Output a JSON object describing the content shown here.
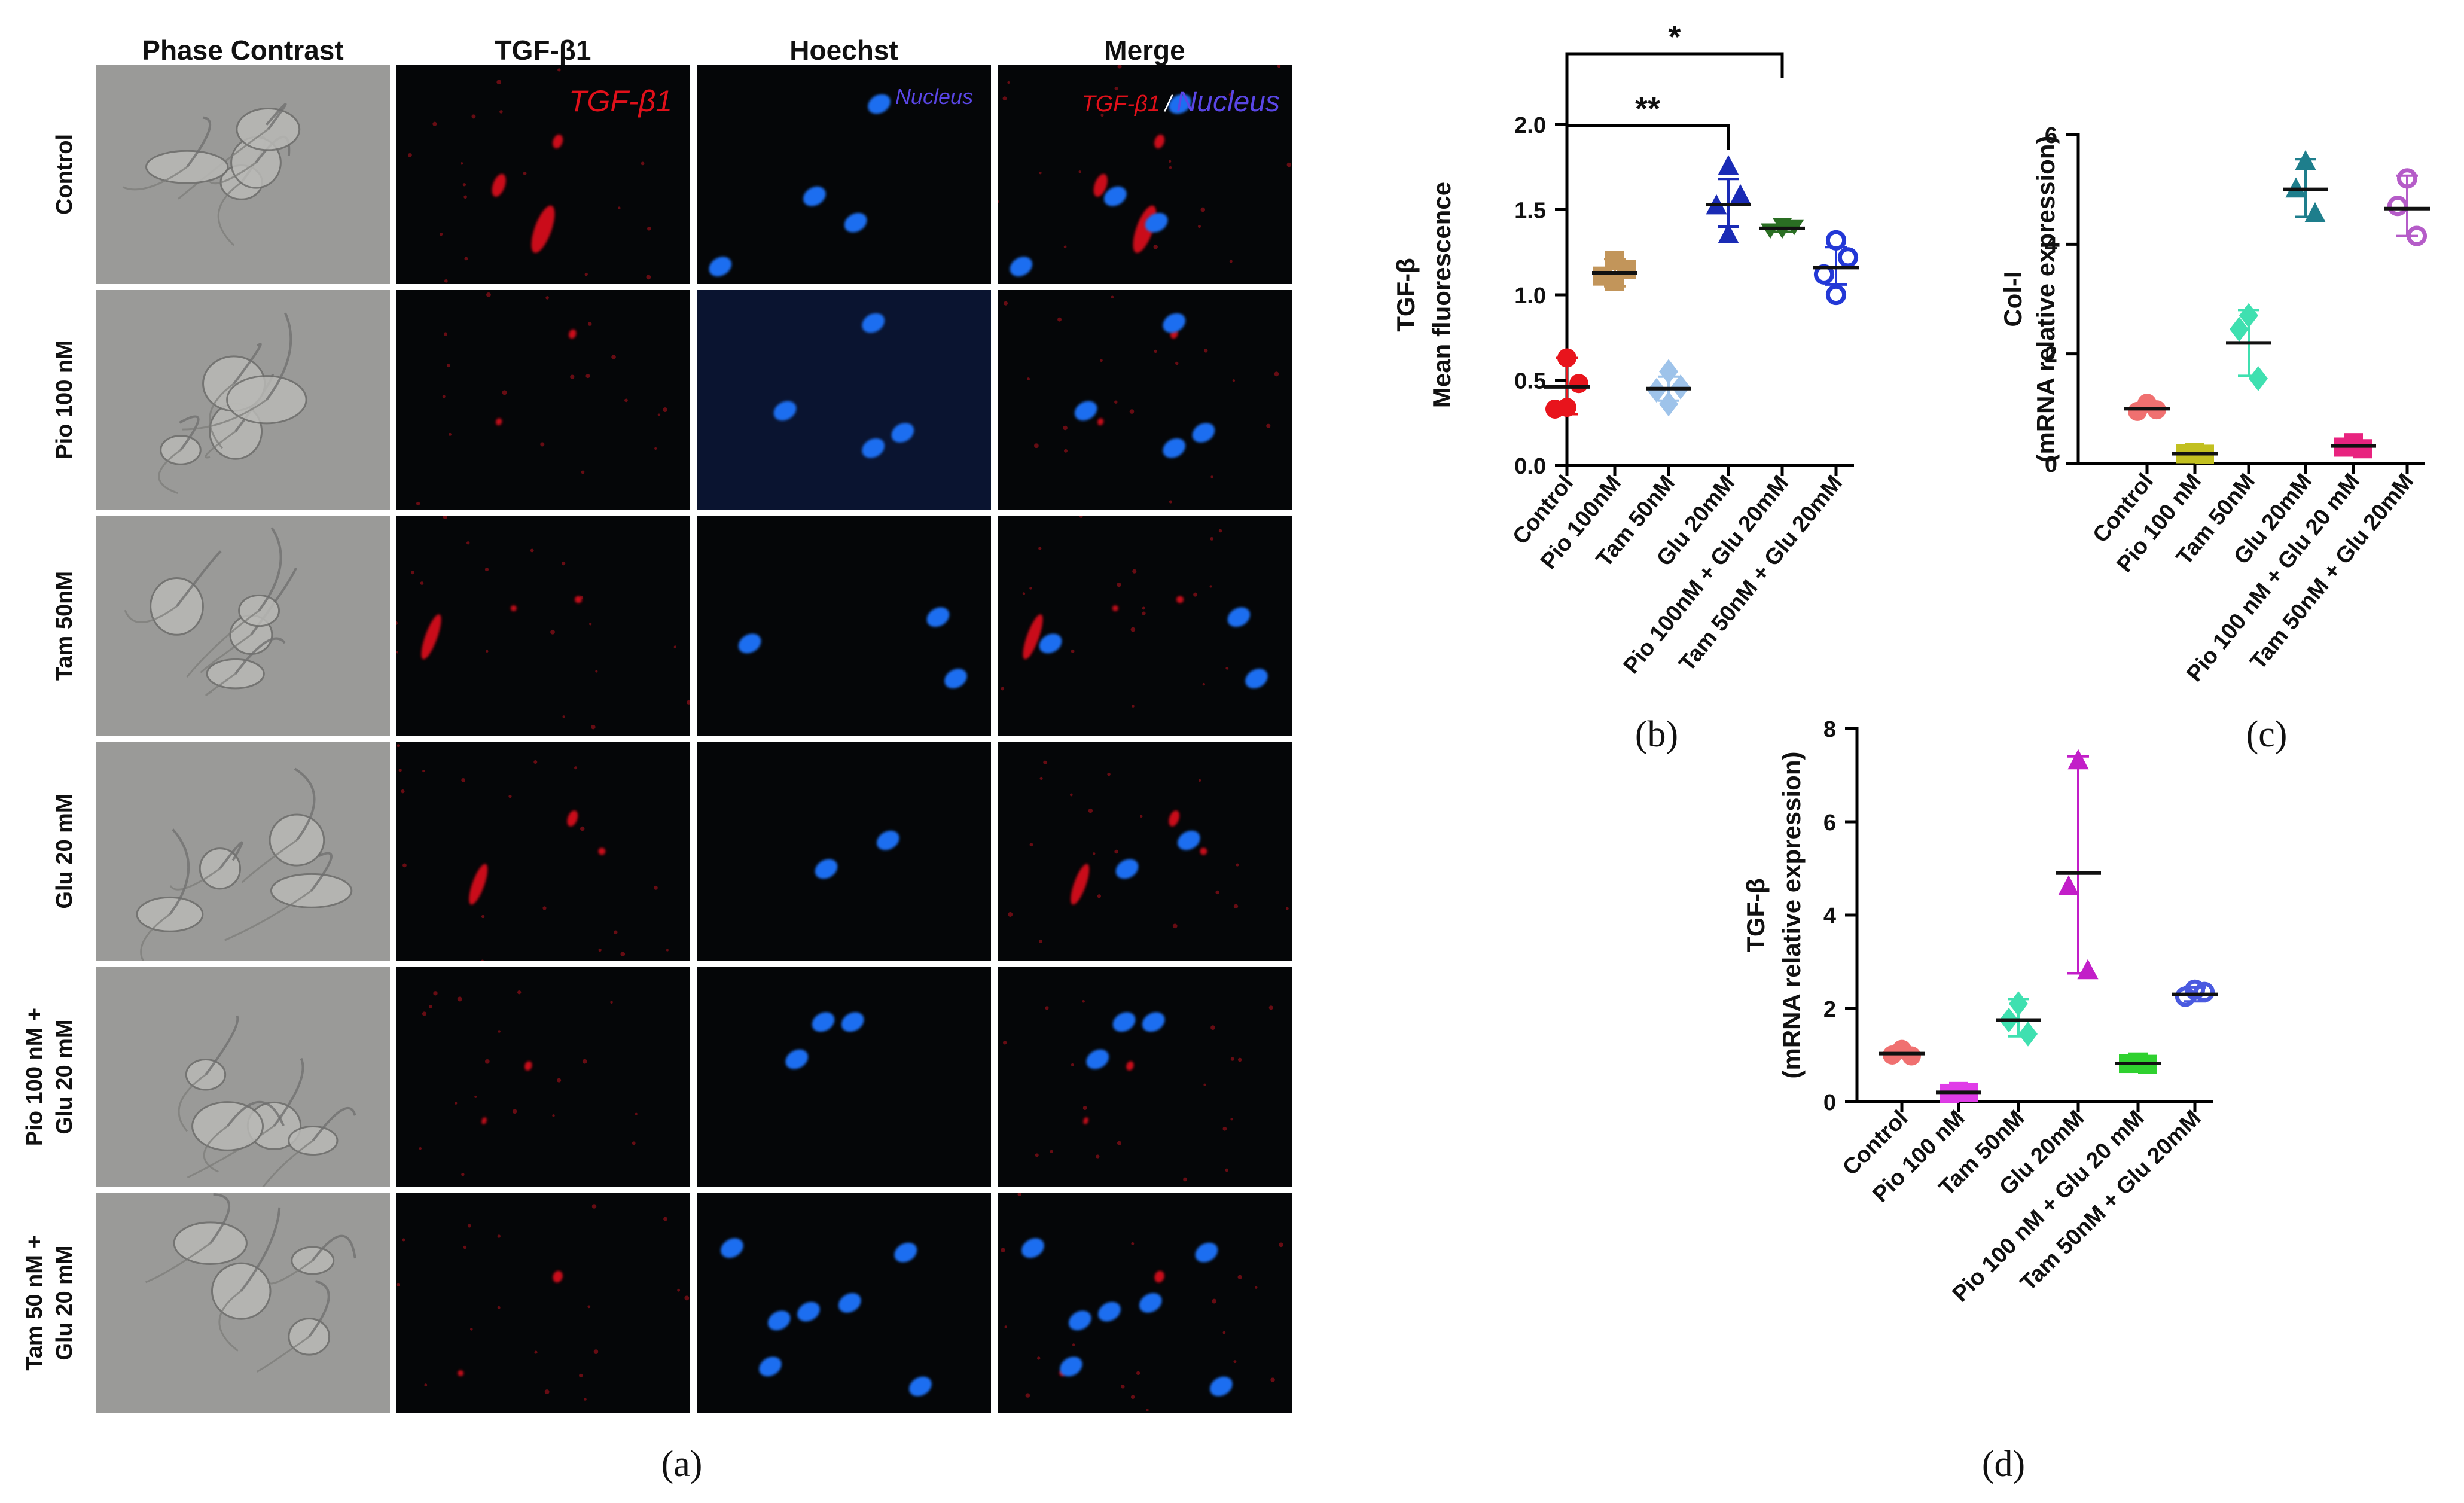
{
  "panel_a": {
    "panel_label": "(a)",
    "column_headers": [
      "Phase Contrast",
      "TGF-β1",
      "Hoechst",
      "Merge"
    ],
    "row_labels": [
      [
        "Control"
      ],
      [
        "Pio 100 nM"
      ],
      [
        "Tam 50nM"
      ],
      [
        "Glu 20 mM"
      ],
      [
        "Pio 100 nM +",
        "Glu 20 mM"
      ],
      [
        "Tam 50 nM +",
        "Glu 20 mM"
      ]
    ],
    "stain_labels": {
      "tgf": "TGF-β1",
      "nucleus": "Nucleus",
      "merge_tgf": "TGF-β1",
      "merge_sep": "/",
      "merge_nucleus": "Nucleus"
    },
    "colors": {
      "tgf": "#e0101a",
      "nucleus": "#1e6ef0",
      "label_blue": "#5a46e6",
      "dark_bg": "#050608",
      "phase_bg": "#9a9a98"
    }
  },
  "chart_data": [
    {
      "id": "b",
      "panel_label": "(b)",
      "type": "scatter",
      "ylabel_lines": [
        "TGF-β",
        "Mean fluorescence"
      ],
      "categories": [
        "Control",
        "Pio 100nM",
        "Tam 50nM",
        "Glu 20mM",
        "Pio 100nM + Glu 20mM",
        "Tam 50nM + Glu 20mM"
      ],
      "ylim": [
        0,
        2.0
      ],
      "yticks": [
        0.0,
        0.5,
        1.0,
        1.5,
        2.0
      ],
      "ytick_labels": [
        "0.0",
        "0.5",
        "1.0",
        "1.5",
        "2.0"
      ],
      "series": [
        {
          "name": "Control",
          "color": "#e8141c",
          "marker": "circle",
          "points": [
            0.63,
            0.48,
            0.33,
            0.34
          ],
          "mean": 0.46,
          "sd_low": 0.3,
          "sd_high": 0.63
        },
        {
          "name": "Pio 100nM",
          "color": "#c2955a",
          "marker": "square",
          "points": [
            1.2,
            1.15,
            1.11,
            1.08
          ],
          "mean": 1.13,
          "sd_low": 1.05,
          "sd_high": 1.21
        },
        {
          "name": "Tam 50nM",
          "color": "#9ec3ea",
          "marker": "diamond",
          "points": [
            0.55,
            0.46,
            0.44,
            0.36
          ],
          "mean": 0.45,
          "sd_low": 0.38,
          "sd_high": 0.52
        },
        {
          "name": "Glu 20mM",
          "color": "#1a2bb5",
          "marker": "triangle",
          "points": [
            1.75,
            1.58,
            1.52,
            1.35
          ],
          "mean": 1.53,
          "sd_low": 1.4,
          "sd_high": 1.68
        },
        {
          "name": "Pio 100nM + Glu 20mM",
          "color": "#2a6e23",
          "marker": "triangle-down",
          "points": [
            1.41,
            1.4,
            1.38,
            1.38
          ],
          "mean": 1.39,
          "sd_low": 1.37,
          "sd_high": 1.41
        },
        {
          "name": "Tam 50nM + Glu 20mM",
          "color": "#2338d6",
          "marker": "open-circle",
          "points": [
            1.32,
            1.22,
            1.12,
            1.0
          ],
          "mean": 1.16,
          "sd_low": 1.06,
          "sd_high": 1.28
        }
      ],
      "significance": [
        {
          "from": 0,
          "to": 3,
          "label": "**"
        },
        {
          "from": 0,
          "to": 4,
          "label": "*"
        }
      ]
    },
    {
      "id": "c",
      "panel_label": "(c)",
      "type": "scatter",
      "ylabel_lines": [
        "Col-I",
        "(mRNA relative expression)"
      ],
      "categories": [
        "Control",
        "Pio 100 nM",
        "Tam 50nM",
        "Glu 20mM",
        "Pio 100 nM + Glu 20 mM",
        "Tam 50nM + Glu 20mM"
      ],
      "ylim": [
        0,
        6
      ],
      "yticks": [
        0,
        2,
        4,
        6
      ],
      "ytick_labels": [
        "0",
        "2",
        "4",
        "6"
      ],
      "series": [
        {
          "name": "Control",
          "color": "#f07070",
          "marker": "circle",
          "points": [
            1.1,
            0.95,
            0.98
          ],
          "mean": 1.0,
          "sd_low": 0.95,
          "sd_high": 1.05
        },
        {
          "name": "Pio 100 nM",
          "color": "#c2c020",
          "marker": "square",
          "points": [
            0.2,
            0.18,
            0.17
          ],
          "mean": 0.18,
          "sd_low": 0.16,
          "sd_high": 0.2
        },
        {
          "name": "Tam 50nM",
          "color": "#3fe0b0",
          "marker": "diamond",
          "points": [
            2.7,
            2.45,
            1.55
          ],
          "mean": 2.2,
          "sd_low": 1.6,
          "sd_high": 2.8
        },
        {
          "name": "Glu 20mM",
          "color": "#1e7e8c",
          "marker": "triangle",
          "points": [
            5.5,
            5.0,
            4.55
          ],
          "mean": 5.0,
          "sd_low": 4.5,
          "sd_high": 5.55
        },
        {
          "name": "Pio 100 nM + Glu 20 mM",
          "color": "#e8237f",
          "marker": "square",
          "points": [
            0.38,
            0.3,
            0.27
          ],
          "mean": 0.32,
          "sd_low": 0.26,
          "sd_high": 0.38
        },
        {
          "name": "Tam 50nM + Glu 20mM",
          "color": "#b55cc8",
          "marker": "open-circle",
          "points": [
            5.2,
            4.7,
            4.15
          ],
          "mean": 4.65,
          "sd_low": 4.15,
          "sd_high": 5.25
        }
      ],
      "significance": []
    },
    {
      "id": "d",
      "panel_label": "(d)",
      "type": "scatter",
      "ylabel_lines": [
        "TGF-β",
        "(mRNA relative expression)"
      ],
      "categories": [
        "Control",
        "Pio 100 nM",
        "Tam 50nM",
        "Glu 20mM",
        "Pio 100 nM + Glu 20 mM",
        "Tam 50nM + Glu 20mM"
      ],
      "ylim": [
        0,
        8
      ],
      "yticks": [
        0,
        2,
        4,
        6,
        8
      ],
      "ytick_labels": [
        "0",
        "2",
        "4",
        "6",
        "8"
      ],
      "series": [
        {
          "name": "Control",
          "color": "#f07070",
          "marker": "circle",
          "points": [
            1.12,
            1.0,
            0.98
          ],
          "mean": 1.03,
          "sd_low": 0.95,
          "sd_high": 1.12
        },
        {
          "name": "Pio 100 nM",
          "color": "#e03ce8",
          "marker": "square",
          "points": [
            0.22,
            0.18,
            0.2
          ],
          "mean": 0.2,
          "sd_low": 0.16,
          "sd_high": 0.24
        },
        {
          "name": "Tam 50nM",
          "color": "#3fe0b0",
          "marker": "diamond",
          "points": [
            2.1,
            1.75,
            1.45
          ],
          "mean": 1.75,
          "sd_low": 1.4,
          "sd_high": 2.2
        },
        {
          "name": "Glu 20mM",
          "color": "#c21ec8",
          "marker": "triangle",
          "points": [
            7.3,
            4.6,
            2.8
          ],
          "mean": 4.9,
          "sd_low": 2.75,
          "sd_high": 7.4
        },
        {
          "name": "Pio 100 nM + Glu 20 mM",
          "color": "#2fd12f",
          "marker": "square",
          "points": [
            0.85,
            0.82,
            0.8
          ],
          "mean": 0.82,
          "sd_low": 0.78,
          "sd_high": 0.88
        },
        {
          "name": "Tam 50nM + Glu 20mM",
          "color": "#4a5ae0",
          "marker": "open-circle",
          "points": [
            2.4,
            2.25,
            2.35
          ],
          "mean": 2.3,
          "sd_low": 2.15,
          "sd_high": 2.45
        }
      ],
      "significance": []
    }
  ]
}
